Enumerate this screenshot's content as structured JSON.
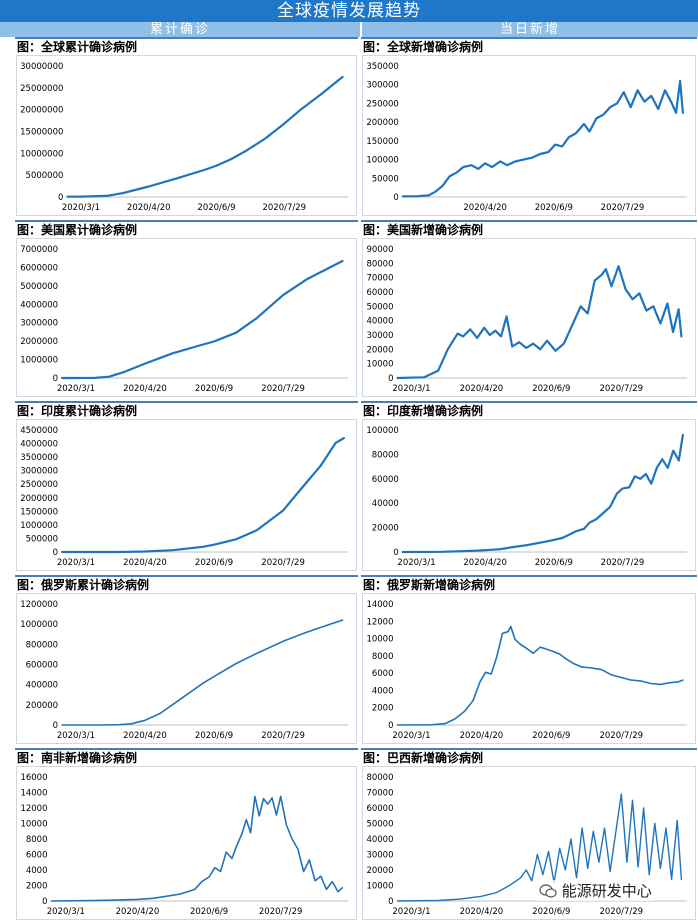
{
  "header": {
    "title": "全球疫情发展趋势",
    "left_label": "累计确诊",
    "right_label": "当日新增"
  },
  "watermark": "能源研发中心",
  "chart_data": [
    {
      "type": "line",
      "title": "图：全球累计确诊病例",
      "x_ticks": [
        "2020/3/1",
        "2020/4/20",
        "2020/6/9",
        "2020/7/29"
      ],
      "y_ticks": [
        "0",
        "5000000",
        "10000000",
        "15000000",
        "20000000",
        "25000000",
        "30000000"
      ],
      "ylim": [
        0,
        30000000
      ],
      "x": [
        "2020/2/20",
        "2020/3/1",
        "2020/3/20",
        "2020/4/1",
        "2020/4/20",
        "2020/5/10",
        "2020/6/1",
        "2020/6/9",
        "2020/6/20",
        "2020/7/1",
        "2020/7/15",
        "2020/7/29",
        "2020/8/10",
        "2020/8/25",
        "2020/9/10"
      ],
      "series": [
        {
          "values": [
            80000,
            90000,
            250000,
            900000,
            2400000,
            4200000,
            6300000,
            7200000,
            8700000,
            10600000,
            13400000,
            16800000,
            20000000,
            23500000,
            27500000
          ]
        }
      ],
      "stroke": 2.2
    },
    {
      "type": "line",
      "title": "图：全球新增确诊病例",
      "x_ticks": [
        "2020/4/20",
        "2020/6/9",
        "2020/7/29"
      ],
      "y_ticks": [
        "0",
        "50000",
        "100000",
        "150000",
        "200000",
        "250000",
        "300000",
        "350000"
      ],
      "ylim": [
        0,
        350000
      ],
      "x": [
        "2020/2/20",
        "2020/3/1",
        "2020/3/10",
        "2020/3/15",
        "2020/3/20",
        "2020/3/25",
        "2020/3/30",
        "2020/4/4",
        "2020/4/10",
        "2020/4/15",
        "2020/4/20",
        "2020/4/25",
        "2020/5/1",
        "2020/5/6",
        "2020/5/12",
        "2020/5/18",
        "2020/5/24",
        "2020/5/30",
        "2020/6/5",
        "2020/6/10",
        "2020/6/15",
        "2020/6/20",
        "2020/6/25",
        "2020/7/1",
        "2020/7/5",
        "2020/7/10",
        "2020/7/15",
        "2020/7/20",
        "2020/7/25",
        "2020/7/30",
        "2020/8/4",
        "2020/8/9",
        "2020/8/14",
        "2020/8/19",
        "2020/8/24",
        "2020/8/29",
        "2020/9/3",
        "2020/9/6",
        "2020/9/9",
        "2020/9/11"
      ],
      "series": [
        {
          "values": [
            1500,
            2000,
            4500,
            15000,
            30000,
            55000,
            65000,
            80000,
            85000,
            75000,
            90000,
            80000,
            95000,
            85000,
            95000,
            100000,
            105000,
            115000,
            120000,
            140000,
            135000,
            160000,
            170000,
            195000,
            175000,
            210000,
            220000,
            240000,
            250000,
            280000,
            240000,
            285000,
            255000,
            270000,
            235000,
            285000,
            250000,
            225000,
            310000,
            225000
          ]
        }
      ],
      "stroke": 2.2
    },
    {
      "type": "line",
      "title": "图：美国累计确诊病例",
      "x_ticks": [
        "2020/3/1",
        "2020/4/20",
        "2020/6/9",
        "2020/7/29"
      ],
      "y_ticks": [
        "0",
        "1000000",
        "2000000",
        "3000000",
        "4000000",
        "5000000",
        "6000000",
        "7000000"
      ],
      "ylim": [
        0,
        7000000
      ],
      "x": [
        "2020/2/20",
        "2020/3/1",
        "2020/3/15",
        "2020/3/25",
        "2020/4/5",
        "2020/4/20",
        "2020/5/10",
        "2020/6/1",
        "2020/6/9",
        "2020/6/25",
        "2020/7/10",
        "2020/7/29",
        "2020/8/15",
        "2020/9/1",
        "2020/9/10"
      ],
      "series": [
        {
          "values": [
            15,
            80,
            3000,
            70000,
            330000,
            780000,
            1340000,
            1820000,
            1980000,
            2460000,
            3250000,
            4500000,
            5350000,
            6000000,
            6350000
          ]
        }
      ],
      "stroke": 2.2
    },
    {
      "type": "line",
      "title": "图：美国新增确诊病例",
      "x_ticks": [
        "2020/3/1",
        "2020/4/20",
        "2020/6/9",
        "2020/7/29"
      ],
      "y_ticks": [
        "0",
        "10000",
        "20000",
        "30000",
        "40000",
        "50000",
        "60000",
        "70000",
        "80000",
        "90000"
      ],
      "ylim": [
        0,
        90000
      ],
      "x": [
        "2020/2/20",
        "2020/3/10",
        "2020/3/20",
        "2020/3/27",
        "2020/4/3",
        "2020/4/7",
        "2020/4/12",
        "2020/4/17",
        "2020/4/22",
        "2020/4/26",
        "2020/4/30",
        "2020/5/4",
        "2020/5/8",
        "2020/5/12",
        "2020/5/17",
        "2020/5/22",
        "2020/5/27",
        "2020/6/1",
        "2020/6/6",
        "2020/6/12",
        "2020/6/18",
        "2020/6/24",
        "2020/6/30",
        "2020/7/5",
        "2020/7/10",
        "2020/7/15",
        "2020/7/18",
        "2020/7/22",
        "2020/7/27",
        "2020/8/1",
        "2020/8/6",
        "2020/8/11",
        "2020/8/16",
        "2020/8/21",
        "2020/8/26",
        "2020/8/31",
        "2020/9/4",
        "2020/9/8",
        "2020/9/10"
      ],
      "series": [
        {
          "values": [
            0,
            500,
            5000,
            20000,
            31000,
            29000,
            34000,
            28000,
            35000,
            30000,
            33000,
            29000,
            43000,
            22000,
            25000,
            21000,
            24000,
            20000,
            26000,
            19000,
            24000,
            37000,
            50000,
            45000,
            68000,
            72000,
            76000,
            64000,
            78000,
            62000,
            55000,
            59000,
            47000,
            50000,
            38000,
            52000,
            32000,
            48000,
            29000
          ]
        }
      ],
      "stroke": 2.2
    },
    {
      "type": "line",
      "title": "图：印度累计确诊病例",
      "x_ticks": [
        "2020/3/1",
        "2020/4/20",
        "2020/6/9",
        "2020/7/29"
      ],
      "y_ticks": [
        "0",
        "500000",
        "1000000",
        "1500000",
        "2000000",
        "2500000",
        "3000000",
        "3500000",
        "4000000",
        "4500000"
      ],
      "ylim": [
        0,
        4500000
      ],
      "x": [
        "2020/2/20",
        "2020/3/1",
        "2020/4/1",
        "2020/4/20",
        "2020/5/10",
        "2020/6/1",
        "2020/6/9",
        "2020/6/25",
        "2020/7/10",
        "2020/7/29",
        "2020/8/10",
        "2020/8/25",
        "2020/9/5",
        "2020/9/11"
      ],
      "series": [
        {
          "values": [
            3,
            3,
            1600,
            18000,
            67000,
            190000,
            270000,
            470000,
            800000,
            1530000,
            2270000,
            3170000,
            4020000,
            4200000
          ]
        }
      ],
      "stroke": 2.2
    },
    {
      "type": "line",
      "title": "图：印度新增确诊病例",
      "x_ticks": [
        "2020/3/1",
        "2020/4/20",
        "2020/6/9",
        "2020/7/29"
      ],
      "y_ticks": [
        "0",
        "20000",
        "40000",
        "60000",
        "80000",
        "100000"
      ],
      "ylim": [
        0,
        100000
      ],
      "x": [
        "2020/2/20",
        "2020/3/20",
        "2020/4/10",
        "2020/4/20",
        "2020/5/1",
        "2020/5/10",
        "2020/5/20",
        "2020/6/1",
        "2020/6/9",
        "2020/6/15",
        "2020/6/20",
        "2020/6/25",
        "2020/7/1",
        "2020/7/5",
        "2020/7/10",
        "2020/7/15",
        "2020/7/20",
        "2020/7/25",
        "2020/7/29",
        "2020/8/3",
        "2020/8/7",
        "2020/8/11",
        "2020/8/15",
        "2020/8/19",
        "2020/8/23",
        "2020/8/27",
        "2020/8/31",
        "2020/9/4",
        "2020/9/8",
        "2020/9/11"
      ],
      "series": [
        {
          "values": [
            0,
            200,
            900,
            1500,
            2300,
            4000,
            5600,
            8000,
            9900,
            11500,
            14000,
            17000,
            19000,
            24000,
            27000,
            32000,
            37000,
            48000,
            52000,
            53000,
            62000,
            60000,
            64000,
            56000,
            69000,
            76000,
            69000,
            83000,
            75000,
            96000
          ]
        }
      ],
      "stroke": 2.2
    },
    {
      "type": "line",
      "title": "图：俄罗斯累计确诊病例",
      "x_ticks": [
        "2020/3/1",
        "2020/4/20",
        "2020/6/9",
        "2020/7/29"
      ],
      "y_ticks": [
        "0",
        "200000",
        "400000",
        "600000",
        "800000",
        "1000000",
        "1200000"
      ],
      "ylim": [
        0,
        1200000
      ],
      "x": [
        "2020/2/20",
        "2020/3/20",
        "2020/4/1",
        "2020/4/10",
        "2020/4/20",
        "2020/5/1",
        "2020/5/15",
        "2020/6/1",
        "2020/6/9",
        "2020/6/25",
        "2020/7/10",
        "2020/7/29",
        "2020/8/15",
        "2020/9/1",
        "2020/9/10"
      ],
      "series": [
        {
          "values": [
            0,
            250,
            2800,
            12000,
            47000,
            115000,
            250000,
            415000,
            480000,
            610000,
            710000,
            830000,
            920000,
            1000000,
            1040000
          ]
        }
      ],
      "stroke": 1.6
    },
    {
      "type": "line",
      "title": "图：俄罗斯新增确诊病例",
      "x_ticks": [
        "2020/3/1",
        "2020/4/20",
        "2020/6/9",
        "2020/7/29"
      ],
      "y_ticks": [
        "0",
        "2000",
        "4000",
        "6000",
        "8000",
        "10000",
        "12000",
        "14000"
      ],
      "ylim": [
        0,
        14000
      ],
      "x": [
        "2020/2/20",
        "2020/3/15",
        "2020/3/25",
        "2020/4/1",
        "2020/4/8",
        "2020/4/14",
        "2020/4/19",
        "2020/4/23",
        "2020/4/27",
        "2020/5/1",
        "2020/5/5",
        "2020/5/9",
        "2020/5/11",
        "2020/5/14",
        "2020/5/18",
        "2020/5/22",
        "2020/5/27",
        "2020/6/1",
        "2020/6/5",
        "2020/6/9",
        "2020/6/15",
        "2020/6/20",
        "2020/6/25",
        "2020/7/1",
        "2020/7/8",
        "2020/7/15",
        "2020/7/22",
        "2020/7/29",
        "2020/8/5",
        "2020/8/12",
        "2020/8/19",
        "2020/8/26",
        "2020/9/2",
        "2020/9/8",
        "2020/9/11"
      ],
      "series": [
        {
          "values": [
            0,
            20,
            160,
            700,
            1600,
            2800,
            5000,
            6100,
            5900,
            7900,
            10600,
            10800,
            11400,
            9900,
            9300,
            8900,
            8300,
            9000,
            8800,
            8600,
            8200,
            7600,
            7100,
            6700,
            6600,
            6400,
            5800,
            5500,
            5200,
            5100,
            4800,
            4700,
            4900,
            5000,
            5200
          ]
        }
      ],
      "stroke": 1.6
    },
    {
      "type": "line",
      "title": "图：南非新增确诊病例",
      "x_ticks": [
        "2020/3/1",
        "2020/4/20",
        "2020/6/9",
        "2020/7/29"
      ],
      "y_ticks": [
        "0",
        "2000",
        "4000",
        "6000",
        "8000",
        "10000",
        "12000",
        "14000",
        "16000"
      ],
      "ylim": [
        0,
        16000
      ],
      "x": [
        "2020/2/20",
        "2020/3/20",
        "2020/4/1",
        "2020/4/20",
        "2020/5/1",
        "2020/5/10",
        "2020/5/20",
        "2020/5/25",
        "2020/5/30",
        "2020/6/4",
        "2020/6/9",
        "2020/6/13",
        "2020/6/17",
        "2020/6/21",
        "2020/6/25",
        "2020/6/28",
        "2020/7/2",
        "2020/7/5",
        "2020/7/8",
        "2020/7/11",
        "2020/7/14",
        "2020/7/17",
        "2020/7/20",
        "2020/7/23",
        "2020/7/26",
        "2020/7/29",
        "2020/8/2",
        "2020/8/6",
        "2020/8/10",
        "2020/8/14",
        "2020/8/18",
        "2020/8/22",
        "2020/8/26",
        "2020/8/30",
        "2020/9/3",
        "2020/9/7",
        "2020/9/10"
      ],
      "series": [
        {
          "values": [
            0,
            50,
            100,
            200,
            350,
            600,
            900,
            1200,
            1500,
            2500,
            3100,
            4300,
            3800,
            6300,
            5500,
            7000,
            8700,
            10500,
            8800,
            13500,
            11000,
            13200,
            12500,
            13300,
            11100,
            13500,
            9800,
            8000,
            6700,
            3800,
            5300,
            2600,
            3200,
            1500,
            2500,
            1200,
            1700
          ]
        }
      ],
      "stroke": 1.6
    },
    {
      "type": "line",
      "title": "图：巴西新增确诊病例",
      "x_ticks": [
        "2020/3/1",
        "2020/4/20",
        "2020/6/9",
        "2020/7/29"
      ],
      "y_ticks": [
        "0",
        "10000",
        "20000",
        "30000",
        "40000",
        "50000",
        "60000",
        "70000",
        "80000"
      ],
      "ylim": [
        0,
        80000
      ],
      "x": [
        "2020/2/20",
        "2020/3/20",
        "2020/4/5",
        "2020/4/20",
        "2020/5/1",
        "2020/5/10",
        "2020/5/18",
        "2020/5/22",
        "2020/5/26",
        "2020/5/30",
        "2020/6/3",
        "2020/6/7",
        "2020/6/11",
        "2020/6/15",
        "2020/6/19",
        "2020/6/23",
        "2020/6/27",
        "2020/7/1",
        "2020/7/5",
        "2020/7/9",
        "2020/7/13",
        "2020/7/17",
        "2020/7/21",
        "2020/7/25",
        "2020/7/29",
        "2020/8/2",
        "2020/8/6",
        "2020/8/10",
        "2020/8/14",
        "2020/8/18",
        "2020/8/22",
        "2020/8/26",
        "2020/8/30",
        "2020/9/3",
        "2020/9/7",
        "2020/9/10"
      ],
      "series": [
        {
          "values": [
            0,
            300,
            1200,
            3000,
            5500,
            10000,
            15000,
            20000,
            13000,
            30000,
            17000,
            32000,
            12000,
            34000,
            20000,
            40000,
            15000,
            47000,
            21000,
            45000,
            25000,
            47000,
            19000,
            44000,
            69000,
            25000,
            65000,
            22000,
            60000,
            17000,
            50000,
            21000,
            47000,
            14000,
            52000,
            14000
          ]
        }
      ],
      "stroke": 1.4
    }
  ]
}
